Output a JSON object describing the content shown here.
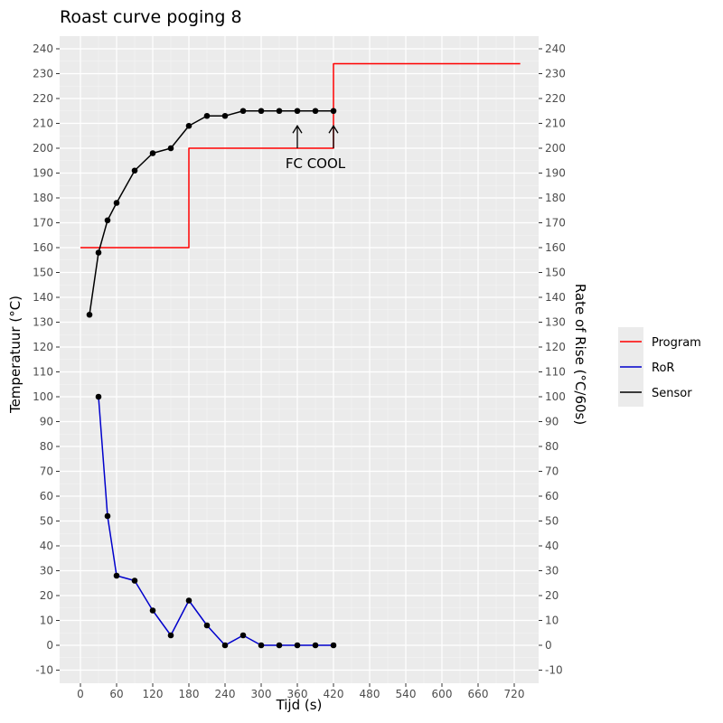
{
  "chart_data": {
    "type": "line",
    "title": "Roast curve poging 8",
    "xlabel": "Tijd (s)",
    "ylabel": "Temperatuur (°C)",
    "y2label": "Rate of Rise (°C/60s)",
    "xlim": [
      0,
      720
    ],
    "ylim": [
      -10,
      240
    ],
    "x_ticks": [
      0,
      60,
      120,
      180,
      240,
      300,
      360,
      420,
      480,
      540,
      600,
      660,
      720
    ],
    "y_ticks": [
      -10,
      0,
      10,
      20,
      30,
      40,
      50,
      60,
      70,
      80,
      90,
      100,
      110,
      120,
      130,
      140,
      150,
      160,
      170,
      180,
      190,
      200,
      210,
      220,
      230,
      240
    ],
    "grid": true,
    "legend_position": "right",
    "series": [
      {
        "name": "Program",
        "color": "#ff0000",
        "style": "step",
        "x": [
          0,
          180,
          180,
          420,
          420,
          730
        ],
        "y": [
          160,
          160,
          200,
          200,
          234,
          234
        ]
      },
      {
        "name": "RoR",
        "color": "#0000cc",
        "markers": true,
        "x": [
          30,
          45,
          60,
          90,
          120,
          150,
          180,
          210,
          240,
          270,
          300,
          330,
          360,
          390,
          420
        ],
        "y": [
          100,
          52,
          28,
          26,
          14,
          4,
          18,
          8,
          0,
          4,
          0,
          0,
          0,
          0,
          0
        ]
      },
      {
        "name": "Sensor",
        "color": "#000000",
        "markers": true,
        "x": [
          15,
          30,
          45,
          60,
          90,
          120,
          150,
          180,
          210,
          240,
          270,
          300,
          330,
          360,
          390,
          420
        ],
        "y": [
          133,
          158,
          171,
          178,
          191,
          198,
          200,
          209,
          213,
          213,
          215,
          215,
          215,
          215,
          215,
          215
        ]
      }
    ],
    "annotations": [
      {
        "text": "FC COOL",
        "arrows_x": [
          360,
          420
        ],
        "arrow_tip_y": 209,
        "arrow_base_y": 200
      }
    ]
  }
}
